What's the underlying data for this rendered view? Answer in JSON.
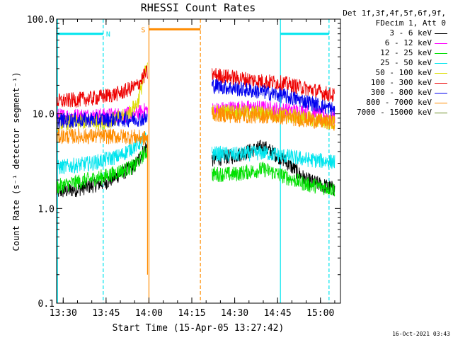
{
  "chart_data": {
    "type": "line",
    "title": "RHESSI Count Rates",
    "xlabel": "Start Time (15-Apr-05 13:27:42)",
    "ylabel": "Count Rate (s⁻¹ detector segment⁻¹)",
    "yscale": "log",
    "ylim": [
      0.1,
      100
    ],
    "xlim": [
      "13:27:42",
      "15:07"
    ],
    "x_ticks": [
      "13:30",
      "13:45",
      "14:00",
      "14:15",
      "14:30",
      "14:45",
      "15:00"
    ],
    "y_ticks": [
      "0.1",
      "1.0",
      "10.0",
      "100.0"
    ],
    "grid": false,
    "legend_position": "right",
    "legend_header": [
      "Det 1f,3f,4f,5f,6f,9f,",
      "FDecim 1, Att 0"
    ],
    "series": [
      {
        "name": "3 - 6 keV",
        "color": "#000000",
        "x": [
          "13:27:42",
          "13:35",
          "13:45",
          "13:55",
          "13:59",
          "14:22",
          "14:30",
          "14:40",
          "14:47",
          "14:55",
          "15:05"
        ],
        "values": [
          1.5,
          1.6,
          1.9,
          2.8,
          4.5,
          3.3,
          3.6,
          4.5,
          3.3,
          2.0,
          1.6
        ]
      },
      {
        "name": "6 - 12 keV",
        "color": "#ff00ff",
        "x": [
          "13:27:42",
          "13:45",
          "13:55",
          "13:59",
          "14:22",
          "14:30",
          "14:40",
          "14:47",
          "14:55",
          "15:05"
        ],
        "values": [
          9.5,
          9.6,
          9.9,
          11.0,
          11.0,
          11.5,
          11.5,
          11.0,
          10.5,
          9.0
        ]
      },
      {
        "name": "12 - 25 keV",
        "color": "#00e000",
        "x": [
          "13:27:42",
          "13:35",
          "13:45",
          "13:55",
          "13:59",
          "14:22",
          "14:30",
          "14:40",
          "14:47",
          "14:55",
          "15:05"
        ],
        "values": [
          1.7,
          1.9,
          2.2,
          2.8,
          4.0,
          2.3,
          2.3,
          2.6,
          2.2,
          1.8,
          1.6
        ]
      },
      {
        "name": "25 - 50 keV",
        "color": "#00e5ee",
        "x": [
          "13:27:42",
          "13:40",
          "13:50",
          "13:59",
          "14:22",
          "14:30",
          "14:40",
          "14:47",
          "14:55",
          "15:05"
        ],
        "values": [
          2.7,
          3.0,
          3.6,
          5.5,
          3.8,
          3.7,
          3.9,
          3.6,
          3.3,
          3.1
        ]
      },
      {
        "name": "50 - 100 keV",
        "color": "#dddd00",
        "x": [
          "13:27:42",
          "13:45",
          "13:52",
          "13:56",
          "13:59",
          "14:22",
          "14:30",
          "14:40",
          "14:47",
          "14:55",
          "15:05"
        ],
        "values": [
          8.0,
          8.3,
          9.5,
          13.0,
          30.0,
          10.5,
          10.5,
          10.2,
          9.8,
          9.0,
          8.0
        ]
      },
      {
        "name": "100 - 300 keV",
        "color": "#ee0000",
        "x": [
          "13:27:42",
          "13:40",
          "13:50",
          "13:56",
          "13:59",
          "14:22",
          "14:30",
          "14:40",
          "14:47",
          "14:55",
          "15:05"
        ],
        "values": [
          13.5,
          14.5,
          16.5,
          20.0,
          27.0,
          26.0,
          24.0,
          22.0,
          21.0,
          18.5,
          15.5
        ]
      },
      {
        "name": "300 - 800 keV",
        "color": "#0000ee",
        "x": [
          "13:27:42",
          "13:45",
          "13:55",
          "13:59",
          "14:22",
          "14:30",
          "14:40",
          "14:47",
          "14:55",
          "15:05"
        ],
        "values": [
          8.5,
          8.7,
          8.8,
          8.9,
          20.0,
          18.5,
          17.0,
          15.5,
          13.5,
          11.0
        ]
      },
      {
        "name": "800 - 7000 keV",
        "color": "#ff8c00",
        "x": [
          "13:27:42",
          "13:45",
          "13:55",
          "13:59",
          "14:22",
          "14:30",
          "14:40",
          "14:47",
          "14:55",
          "15:05"
        ],
        "values": [
          5.8,
          5.8,
          5.7,
          5.5,
          10.0,
          9.5,
          9.5,
          9.2,
          8.6,
          8.0
        ]
      },
      {
        "name": "7000 - 15000 keV",
        "color": "#6b8e23",
        "x": [],
        "values": []
      }
    ],
    "annotations": [
      {
        "label": "N",
        "color": "#00e5ee",
        "bar": [
          "13:28",
          "13:44"
        ],
        "value": 70
      },
      {
        "label": "",
        "color": "#00e5ee",
        "bar": [
          "14:46",
          "15:03"
        ],
        "value": 70
      },
      {
        "label": "S",
        "color": "#ff8c00",
        "bar": [
          "14:00",
          "14:18"
        ],
        "value": 78
      }
    ],
    "vlines": [
      {
        "x": "13:28",
        "color": "#00e5ee",
        "style": "solid"
      },
      {
        "x": "13:44",
        "color": "#00e5ee",
        "style": "dashed"
      },
      {
        "x": "14:00",
        "color": "#ff8c00",
        "style": "solid"
      },
      {
        "x": "14:18",
        "color": "#ff8c00",
        "style": "dashed"
      },
      {
        "x": "14:46",
        "color": "#00e5ee",
        "style": "solid"
      },
      {
        "x": "15:03",
        "color": "#00e5ee",
        "style": "dashed"
      }
    ],
    "spikes": [
      {
        "x": "13:59:30",
        "from": 0.2,
        "to": 6.0,
        "color": "#ff8c00"
      }
    ]
  },
  "footer_timestamp": "16-Oct-2021 03:43"
}
